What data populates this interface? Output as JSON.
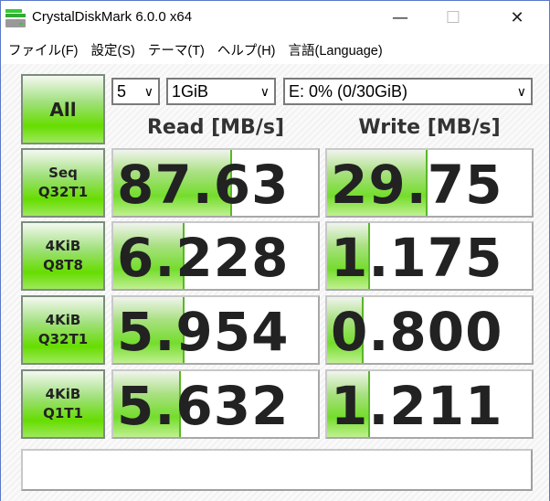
{
  "window": {
    "title": "CrystalDiskMark 6.0.0 x64",
    "minimize": "—",
    "maximize": "☐",
    "close": "✕"
  },
  "menu": [
    "ファイル(F)",
    "設定(S)",
    "テーマ(T)",
    "ヘルプ(H)",
    "言語(Language)"
  ],
  "controls": {
    "all_label": "All",
    "count": "5",
    "size": "1GiB",
    "drive": "E: 0% (0/30GiB)",
    "chevron": "∨"
  },
  "headers": {
    "read": "Read [MB/s]",
    "write": "Write [MB/s]"
  },
  "tests": [
    {
      "line1": "Seq",
      "line2": "Q32T1",
      "read": "87.63",
      "write": "29.75",
      "read_fill": 0.58,
      "write_fill": 0.49
    },
    {
      "line1": "4KiB",
      "line2": "Q8T8",
      "read": "6.228",
      "write": "1.175",
      "read_fill": 0.35,
      "write_fill": 0.21
    },
    {
      "line1": "4KiB",
      "line2": "Q32T1",
      "read": "5.954",
      "write": "0.800",
      "read_fill": 0.35,
      "write_fill": 0.18
    },
    {
      "line1": "4KiB",
      "line2": "Q1T1",
      "read": "5.632",
      "write": "1.211",
      "read_fill": 0.33,
      "write_fill": 0.21
    }
  ],
  "comment": ""
}
